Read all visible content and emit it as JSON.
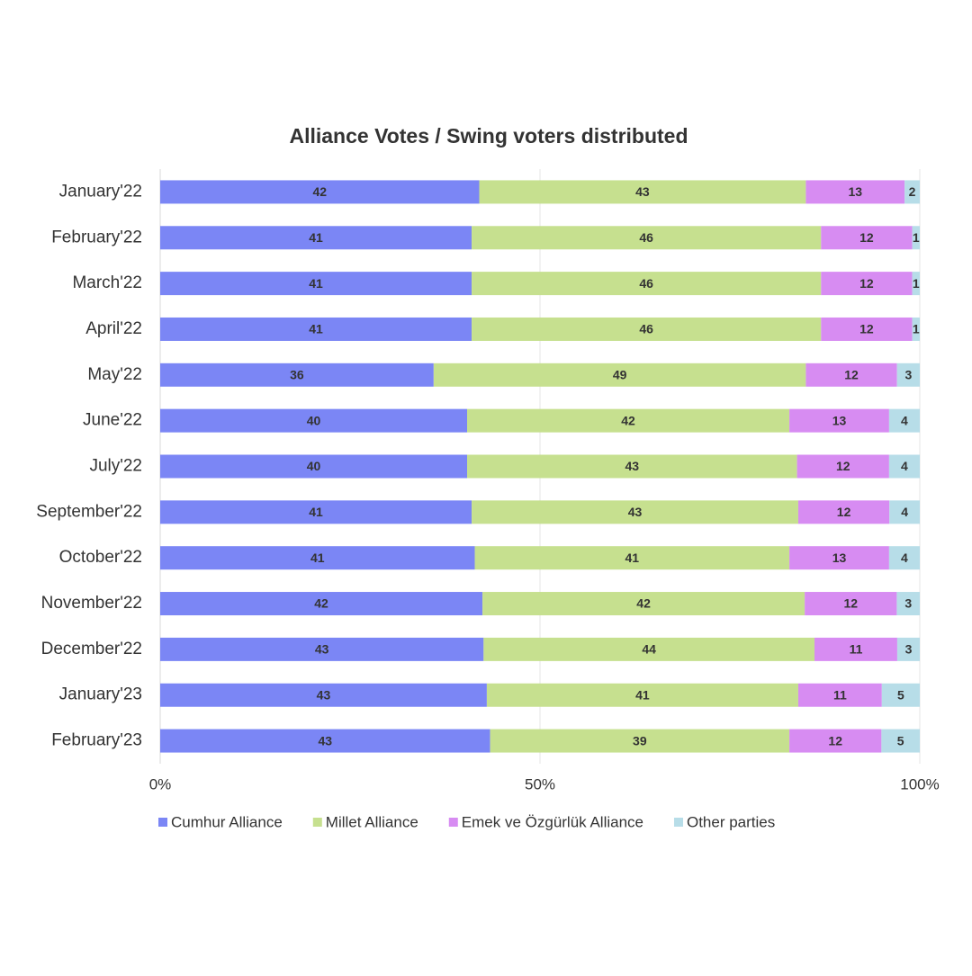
{
  "chart_data": {
    "type": "stacked_percent_bar_horizontal",
    "title": "Alliance Votes / Swing voters distributed",
    "categories": [
      "January'22",
      "February'22",
      "March'22",
      "April'22",
      "May'22",
      "June'22",
      "July'22",
      "September'22",
      "October'22",
      "November'22",
      "December'22",
      "January'23",
      "February'23"
    ],
    "series": [
      {
        "name": "Cumhur Alliance",
        "color": "#7b86f5",
        "values": [
          42,
          41,
          41,
          41,
          36,
          40,
          40,
          41,
          41,
          42,
          43,
          43,
          43
        ]
      },
      {
        "name": "Millet Alliance",
        "color": "#c6e08f",
        "values": [
          43,
          46,
          46,
          46,
          49,
          42,
          43,
          43,
          41,
          42,
          44,
          41,
          39
        ]
      },
      {
        "name": "Emek ve Özgürlük Alliance",
        "color": "#d78cf2",
        "values": [
          13,
          12,
          12,
          12,
          12,
          13,
          12,
          12,
          13,
          12,
          11,
          11,
          12
        ]
      },
      {
        "name": "Other parties",
        "color": "#b7dde8",
        "values": [
          2,
          1,
          1,
          1,
          3,
          4,
          4,
          4,
          4,
          3,
          3,
          5,
          5
        ]
      }
    ],
    "xlim": [
      0,
      100
    ],
    "xticks": [
      {
        "value": 0,
        "label": "0%"
      },
      {
        "value": 50,
        "label": "50%"
      },
      {
        "value": 100,
        "label": "100%"
      }
    ],
    "grid": true,
    "legend": "bottom"
  }
}
